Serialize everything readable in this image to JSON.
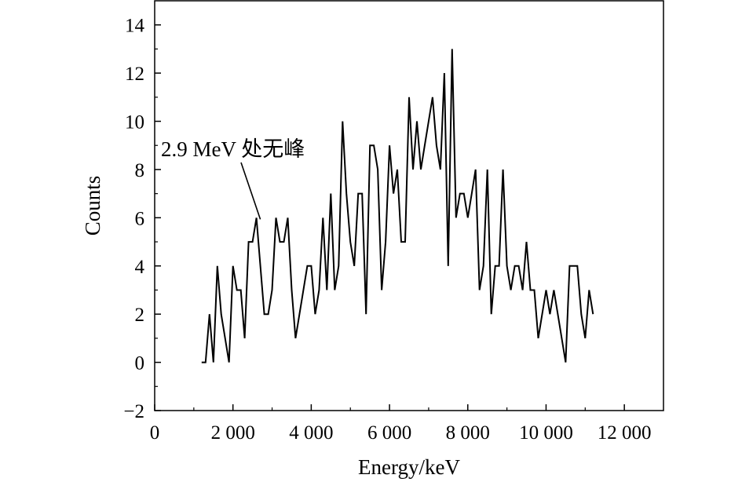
{
  "chart_data": {
    "type": "line",
    "xlabel": "Energy/keV",
    "ylabel": "Counts",
    "xlim": [
      0,
      13000
    ],
    "ylim": [
      -2,
      15
    ],
    "x_ticks": [
      0,
      2000,
      4000,
      6000,
      8000,
      10000,
      12000
    ],
    "x_tick_labels": [
      "0",
      "2 000",
      "4 000",
      "6 000",
      "8 000",
      "10 000",
      "12 000"
    ],
    "y_ticks": [
      -2,
      0,
      2,
      4,
      6,
      8,
      10,
      12,
      14
    ],
    "y_tick_labels": [
      "−2",
      "0",
      "2",
      "4",
      "6",
      "8",
      "10",
      "12",
      "14"
    ],
    "grid": false,
    "annotation": {
      "text": "2.9 MeV 处无峰",
      "target_x": 2900,
      "target_y": 6
    },
    "series": [
      {
        "x": [
          1200,
          1300,
          1400,
          1500,
          1600,
          1700,
          1800,
          1900,
          2000,
          2100,
          2200,
          2300,
          2400,
          2500,
          2600,
          2700,
          2800,
          2900,
          3000,
          3100,
          3200,
          3300,
          3400,
          3500,
          3600,
          3700,
          3800,
          3900,
          4000,
          4100,
          4200,
          4300,
          4400,
          4500,
          4600,
          4700,
          4800,
          4900,
          5000,
          5100,
          5200,
          5300,
          5400,
          5500,
          5600,
          5700,
          5800,
          5900,
          6000,
          6100,
          6200,
          6300,
          6400,
          6500,
          6600,
          6700,
          6800,
          6900,
          7000,
          7100,
          7200,
          7300,
          7400,
          7500,
          7600,
          7700,
          7800,
          7900,
          8000,
          8100,
          8200,
          8300,
          8400,
          8500,
          8600,
          8700,
          8800,
          8900,
          9000,
          9100,
          9200,
          9300,
          9400,
          9500,
          9600,
          9700,
          9800,
          9900,
          10000,
          10100,
          10200,
          10300,
          10400,
          10500,
          10600,
          10700,
          10800,
          10900,
          11000,
          11100,
          11200
        ],
        "y": [
          0,
          0,
          2,
          0,
          4,
          2,
          1,
          0,
          4,
          3,
          3,
          1,
          5,
          5,
          6,
          4,
          2,
          2,
          3,
          6,
          5,
          5,
          6,
          3,
          1,
          2,
          3,
          4,
          4,
          2,
          3,
          6,
          3,
          7,
          3,
          4,
          10,
          7,
          5,
          4,
          7,
          7,
          2,
          9,
          9,
          8,
          3,
          5,
          9,
          7,
          8,
          5,
          5,
          11,
          8,
          10,
          8,
          9,
          10,
          11,
          9,
          8,
          12,
          4,
          13,
          6,
          7,
          7,
          6,
          7,
          8,
          3,
          4,
          8,
          2,
          4,
          4,
          8,
          4,
          3,
          4,
          4,
          3,
          5,
          3,
          3,
          1,
          2,
          3,
          2,
          3,
          2,
          1,
          0,
          4,
          4,
          4,
          2,
          1,
          3,
          2
        ]
      }
    ]
  }
}
